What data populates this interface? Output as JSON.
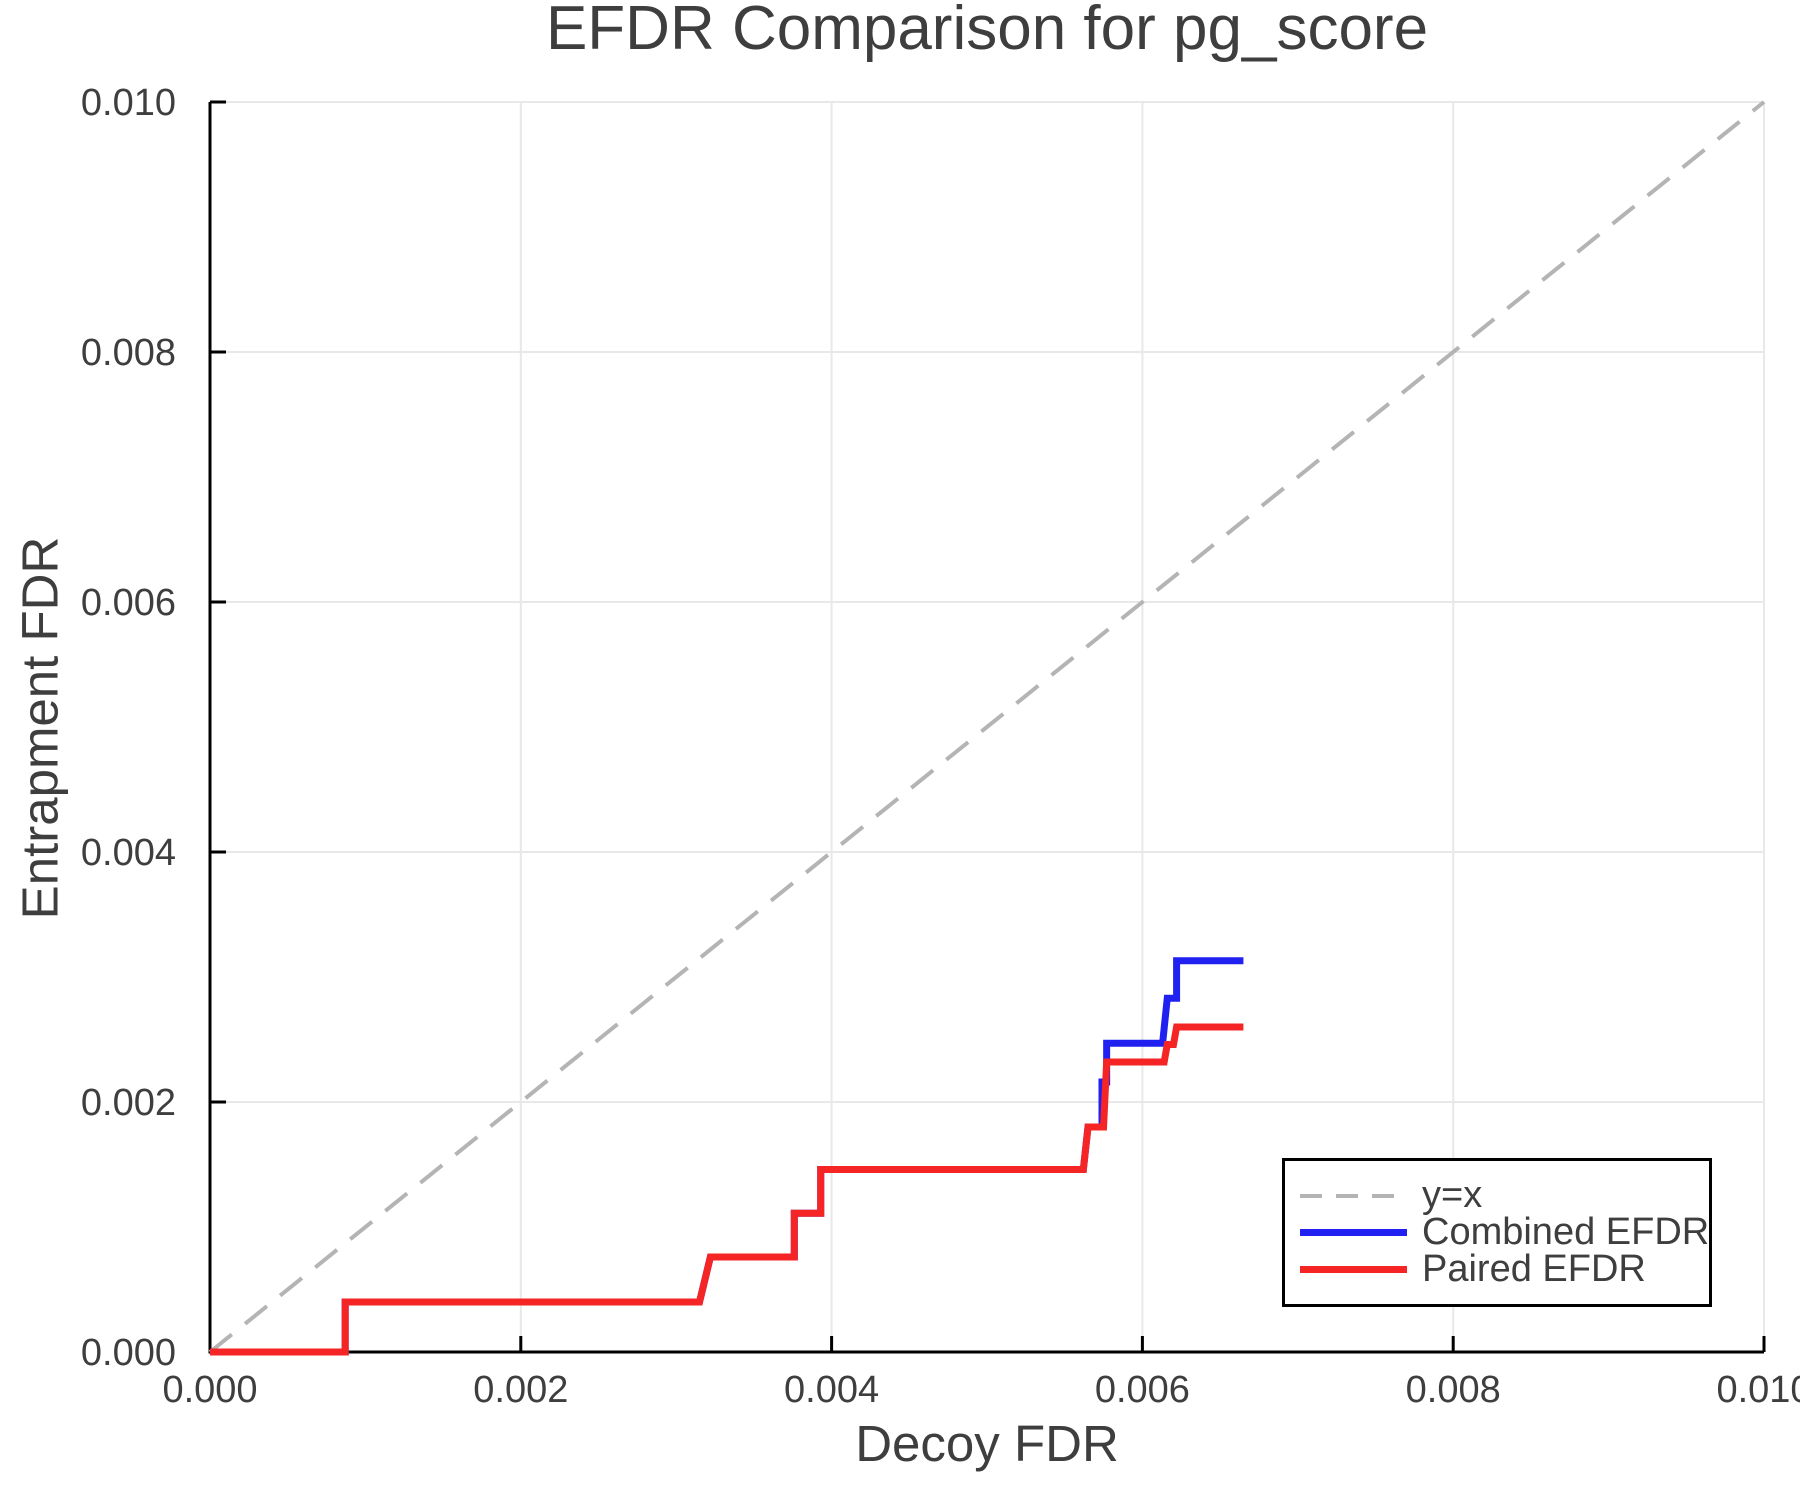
{
  "title": "EFDR Comparison for pg_score",
  "axes": {
    "x_label": "Decoy FDR",
    "y_label": "Entrapment FDR"
  },
  "legend": {
    "items": [
      {
        "label": "y=x",
        "color": "#b4b4b4",
        "style": "dashed"
      },
      {
        "label": "Combined EFDR",
        "color": "#2020f0",
        "style": "solid"
      },
      {
        "label": "Paired EFDR",
        "color": "#f52525",
        "style": "solid"
      }
    ]
  },
  "colors": {
    "background": "#ffffff",
    "text": "#3e3e3e",
    "grid": "#e8e8e8",
    "spine": "#000000",
    "identity_line": "#b4b4b4",
    "combined_efdr": "#2020f0",
    "paired_efdr": "#f52525"
  },
  "chart_data": {
    "type": "line",
    "title": "EFDR Comparison for pg_score",
    "xlabel": "Decoy FDR",
    "ylabel": "Entrapment FDR",
    "xlim": [
      0,
      0.01
    ],
    "ylim": [
      0,
      0.01
    ],
    "grid": true,
    "legend_position": "lower right",
    "x_ticks": [
      0,
      0.002,
      0.004,
      0.006,
      0.008,
      0.01
    ],
    "y_ticks": [
      0,
      0.002,
      0.004,
      0.006,
      0.008,
      0.01
    ],
    "x_tick_labels": [
      "0.000",
      "0.002",
      "0.004",
      "0.006",
      "0.008",
      "0.010"
    ],
    "y_tick_labels": [
      "0.000",
      "0.002",
      "0.004",
      "0.006",
      "0.008",
      "0.010"
    ],
    "series": [
      {
        "name": "y=x",
        "color": "#b4b4b4",
        "style": "dashed",
        "width": 4,
        "points": [
          [
            0,
            0
          ],
          [
            0.01,
            0.01
          ]
        ]
      },
      {
        "name": "Combined EFDR",
        "color": "#2020f0",
        "style": "solid",
        "width": 7,
        "points": [
          [
            0,
            0
          ],
          [
            0.00087,
            0
          ],
          [
            0.00087,
            0.0004
          ],
          [
            0.00315,
            0.0004
          ],
          [
            0.00322,
            0.00076
          ],
          [
            0.00376,
            0.00076
          ],
          [
            0.00376,
            0.00111
          ],
          [
            0.00393,
            0.00111
          ],
          [
            0.00393,
            0.00146
          ],
          [
            0.00562,
            0.00146
          ],
          [
            0.00565,
            0.0018
          ],
          [
            0.00574,
            0.0018
          ],
          [
            0.00574,
            0.00216
          ],
          [
            0.00577,
            0.00216
          ],
          [
            0.00577,
            0.00247
          ],
          [
            0.00613,
            0.00247
          ],
          [
            0.00616,
            0.00283
          ],
          [
            0.00622,
            0.00283
          ],
          [
            0.00622,
            0.00313
          ],
          [
            0.00665,
            0.00313
          ]
        ]
      },
      {
        "name": "Paired EFDR",
        "color": "#f52525",
        "style": "solid",
        "width": 7,
        "points": [
          [
            0,
            0
          ],
          [
            0.00087,
            0
          ],
          [
            0.00087,
            0.0004
          ],
          [
            0.00315,
            0.0004
          ],
          [
            0.00322,
            0.00076
          ],
          [
            0.00376,
            0.00076
          ],
          [
            0.00376,
            0.00111
          ],
          [
            0.00393,
            0.00111
          ],
          [
            0.00393,
            0.00146
          ],
          [
            0.00562,
            0.00146
          ],
          [
            0.00565,
            0.0018
          ],
          [
            0.00575,
            0.0018
          ],
          [
            0.00577,
            0.00232
          ],
          [
            0.00614,
            0.00232
          ],
          [
            0.00616,
            0.00246
          ],
          [
            0.0062,
            0.00246
          ],
          [
            0.00622,
            0.0026
          ],
          [
            0.00665,
            0.0026
          ]
        ]
      }
    ]
  }
}
